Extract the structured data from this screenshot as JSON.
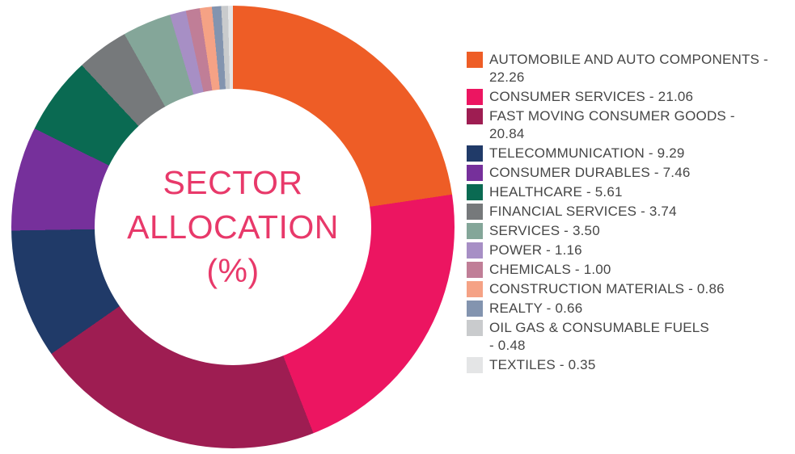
{
  "styles": {
    "background": "#FFFFFF",
    "center_text_color": "#E8396A",
    "legend_text_color": "#464646"
  },
  "chart_data": {
    "type": "pie",
    "variant": "donut",
    "title": "SECTOR ALLOCATION (%)",
    "center_label": "SECTOR\nALLOCATION\n(%)",
    "legend_position": "right",
    "start_angle_deg": 0,
    "direction": "clockwise",
    "series": [
      {
        "name": "AUTOMOBILE AND AUTO COMPONENTS",
        "value": 22.26,
        "color": "#EE5D26",
        "legend_label": "AUTOMOBILE AND AUTO COMPONENTS -\n22.26"
      },
      {
        "name": "CONSUMER SERVICES",
        "value": 21.06,
        "color": "#EC1561",
        "legend_label": "CONSUMER SERVICES - 21.06"
      },
      {
        "name": "FAST MOVING CONSUMER GOODS",
        "value": 20.84,
        "color": "#9E1D52",
        "legend_label": "FAST MOVING CONSUMER GOODS -\n20.84"
      },
      {
        "name": "TELECOMMUNICATION",
        "value": 9.29,
        "color": "#203A68",
        "legend_label": "TELECOMMUNICATION - 9.29"
      },
      {
        "name": "CONSUMER DURABLES",
        "value": 7.46,
        "color": "#76309B",
        "legend_label": "CONSUMER DURABLES - 7.46"
      },
      {
        "name": "HEALTHCARE",
        "value": 5.61,
        "color": "#0A6A52",
        "legend_label": "HEALTHCARE - 5.61"
      },
      {
        "name": "FINANCIAL SERVICES",
        "value": 3.74,
        "color": "#76797B",
        "legend_label": "FINANCIAL SERVICES - 3.74"
      },
      {
        "name": "SERVICES",
        "value": 3.5,
        "color": "#84A699",
        "legend_label": "SERVICES - 3.50"
      },
      {
        "name": "POWER",
        "value": 1.16,
        "color": "#A78FC5",
        "legend_label": "POWER - 1.16"
      },
      {
        "name": "CHEMICALS",
        "value": 1.0,
        "color": "#C07E97",
        "legend_label": "CHEMICALS - 1.00"
      },
      {
        "name": "CONSTRUCTION MATERIALS",
        "value": 0.86,
        "color": "#F5A285",
        "legend_label": "CONSTRUCTION MATERIALS - 0.86"
      },
      {
        "name": "REALTY",
        "value": 0.66,
        "color": "#8394AF",
        "legend_label": "REALTY - 0.66"
      },
      {
        "name": "OIL GAS & CONSUMABLE FUELS",
        "value": 0.48,
        "color": "#C9CBCD",
        "legend_label": "OIL GAS & CONSUMABLE FUELS\n- 0.48"
      },
      {
        "name": "TEXTILES",
        "value": 0.35,
        "color": "#E4E5E6",
        "legend_label": "TEXTILES - 0.35"
      }
    ]
  }
}
